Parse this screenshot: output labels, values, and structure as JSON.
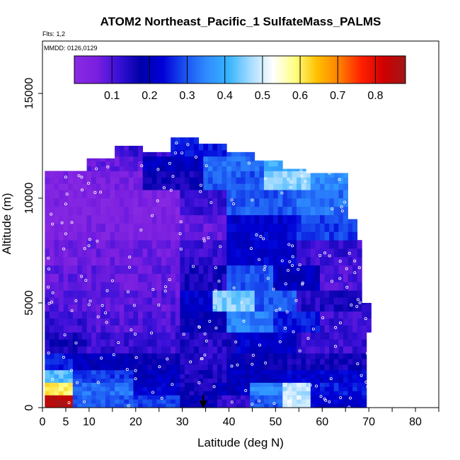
{
  "chart_data": {
    "type": "heatmap",
    "title": "ATOM2 Northeast_Pacific_1 SulfateMass_PALMS",
    "subtitle_flights": "Flts: 1,2",
    "subtitle_dates": "MMDD: 0126,0129",
    "xlabel": "Latitude (deg N)",
    "ylabel": "Altitude (m)",
    "xlim": [
      0,
      85
    ],
    "ylim": [
      0,
      17500
    ],
    "x_ticks": [
      0,
      5,
      10,
      20,
      30,
      40,
      50,
      60,
      70,
      80
    ],
    "y_ticks": [
      0,
      5000,
      10000,
      15000
    ],
    "colorbar": {
      "ticks": [
        0.1,
        0.2,
        0.3,
        0.4,
        0.5,
        0.6,
        0.7,
        0.8
      ],
      "range": [
        0,
        0.88
      ],
      "colors": [
        "#8a2be2",
        "#7a1fe0",
        "#3a10d8",
        "#0000a8",
        "#0000d8",
        "#1a50f0",
        "#2f8cff",
        "#38b4ff",
        "#a8dcff",
        "#ffffff",
        "#ffff80",
        "#ffc000",
        "#ff7f00",
        "#ff2000",
        "#d00000",
        "#a01818"
      ]
    },
    "marker_latitude": 34.5,
    "grid": false,
    "legend": "colorbar-top",
    "profile_columns": [
      {
        "lat_range": [
          1,
          7
        ],
        "alt_max": 11300
      },
      {
        "lat_range": [
          7,
          10
        ],
        "alt_max": 11300
      },
      {
        "lat_range": [
          10,
          16
        ],
        "alt_max": 11900
      },
      {
        "lat_range": [
          16,
          22
        ],
        "alt_max": 12500
      },
      {
        "lat_range": [
          22,
          28
        ],
        "alt_max": 12200
      },
      {
        "lat_range": [
          28,
          34
        ],
        "alt_max": 12900
      },
      {
        "lat_range": [
          34,
          40
        ],
        "alt_max": 12600
      },
      {
        "lat_range": [
          40,
          46
        ],
        "alt_max": 12200
      },
      {
        "lat_range": [
          46,
          52
        ],
        "alt_max": 11800
      },
      {
        "lat_range": [
          52,
          57
        ],
        "alt_max": 11400
      },
      {
        "lat_range": [
          57,
          62
        ],
        "alt_max": 11200
      },
      {
        "lat_range": [
          62,
          66
        ],
        "alt_max": 11200
      },
      {
        "lat_range": [
          66,
          69
        ],
        "alt_max": 9000
      },
      {
        "lat_range": [
          69,
          71
        ],
        "alt_max": 5000
      }
    ],
    "layers": [
      {
        "alt": [
          0,
          600
        ],
        "segments": [
          [
            0.5,
            7,
            0.85
          ],
          [
            7,
            20,
            0.3
          ],
          [
            20,
            30,
            0.28
          ],
          [
            30,
            38,
            0.18
          ],
          [
            38,
            45,
            0.12
          ],
          [
            45,
            52,
            0.3
          ],
          [
            52,
            58,
            0.5
          ],
          [
            58,
            70,
            0.22
          ]
        ]
      },
      {
        "alt": [
          600,
          1200
        ],
        "segments": [
          [
            0.5,
            7,
            0.6
          ],
          [
            7,
            20,
            0.32
          ],
          [
            20,
            30,
            0.22
          ],
          [
            30,
            38,
            0.16
          ],
          [
            38,
            45,
            0.2
          ],
          [
            45,
            52,
            0.35
          ],
          [
            52,
            58,
            0.48
          ],
          [
            58,
            70,
            0.25
          ]
        ]
      },
      {
        "alt": [
          1200,
          1800
        ],
        "segments": [
          [
            0.5,
            7,
            0.42
          ],
          [
            7,
            20,
            0.28
          ],
          [
            20,
            30,
            0.2
          ],
          [
            30,
            40,
            0.15
          ],
          [
            40,
            52,
            0.2
          ],
          [
            52,
            70,
            0.22
          ]
        ]
      },
      {
        "alt": [
          1800,
          2600
        ],
        "segments": [
          [
            0.5,
            7,
            0.25
          ],
          [
            7,
            20,
            0.2
          ],
          [
            20,
            30,
            0.18
          ],
          [
            30,
            40,
            0.14
          ],
          [
            40,
            52,
            0.18
          ],
          [
            52,
            70,
            0.16
          ]
        ]
      },
      {
        "alt": [
          2600,
          3600
        ],
        "segments": [
          [
            1,
            10,
            0.15
          ],
          [
            10,
            30,
            0.12
          ],
          [
            30,
            42,
            0.14
          ],
          [
            42,
            55,
            0.22
          ],
          [
            55,
            70,
            0.12
          ]
        ]
      },
      {
        "alt": [
          3600,
          4600
        ],
        "segments": [
          [
            1,
            10,
            0.12
          ],
          [
            10,
            30,
            0.1
          ],
          [
            30,
            40,
            0.18
          ],
          [
            40,
            50,
            0.34
          ],
          [
            50,
            60,
            0.25
          ],
          [
            60,
            71,
            0.12
          ]
        ]
      },
      {
        "alt": [
          4600,
          5600
        ],
        "segments": [
          [
            1,
            10,
            0.1
          ],
          [
            10,
            30,
            0.09
          ],
          [
            30,
            37,
            0.22
          ],
          [
            37,
            46,
            0.45
          ],
          [
            46,
            55,
            0.3
          ],
          [
            55,
            71,
            0.14
          ]
        ]
      },
      {
        "alt": [
          5600,
          6800
        ],
        "segments": [
          [
            1,
            10,
            0.08
          ],
          [
            10,
            30,
            0.08
          ],
          [
            30,
            40,
            0.15
          ],
          [
            40,
            50,
            0.3
          ],
          [
            50,
            60,
            0.2
          ],
          [
            60,
            70,
            0.1
          ]
        ]
      },
      {
        "alt": [
          6800,
          8000
        ],
        "segments": [
          [
            1,
            10,
            0.06
          ],
          [
            10,
            30,
            0.07
          ],
          [
            30,
            40,
            0.12
          ],
          [
            40,
            55,
            0.22
          ],
          [
            55,
            69,
            0.12
          ]
        ]
      },
      {
        "alt": [
          8000,
          9200
        ],
        "segments": [
          [
            1,
            10,
            0.04
          ],
          [
            10,
            30,
            0.05
          ],
          [
            30,
            40,
            0.08
          ],
          [
            40,
            55,
            0.22
          ],
          [
            55,
            68,
            0.28
          ]
        ]
      },
      {
        "alt": [
          9200,
          10400
        ],
        "segments": [
          [
            1,
            10,
            0.04
          ],
          [
            10,
            30,
            0.04
          ],
          [
            30,
            40,
            0.12
          ],
          [
            40,
            55,
            0.3
          ],
          [
            55,
            67,
            0.32
          ]
        ]
      },
      {
        "alt": [
          10400,
          11300
        ],
        "segments": [
          [
            1,
            10,
            0.04
          ],
          [
            10,
            22,
            0.05
          ],
          [
            22,
            35,
            0.16
          ],
          [
            35,
            48,
            0.3
          ],
          [
            48,
            58,
            0.45
          ],
          [
            58,
            67,
            0.35
          ]
        ]
      },
      {
        "alt": [
          11300,
          12000
        ],
        "segments": [
          [
            10,
            22,
            0.08
          ],
          [
            22,
            35,
            0.2
          ],
          [
            35,
            48,
            0.32
          ],
          [
            48,
            58,
            0.4
          ]
        ]
      },
      {
        "alt": [
          12000,
          12900
        ],
        "segments": [
          [
            16,
            28,
            0.12
          ],
          [
            28,
            40,
            0.25
          ],
          [
            40,
            48,
            0.3
          ]
        ]
      }
    ]
  }
}
